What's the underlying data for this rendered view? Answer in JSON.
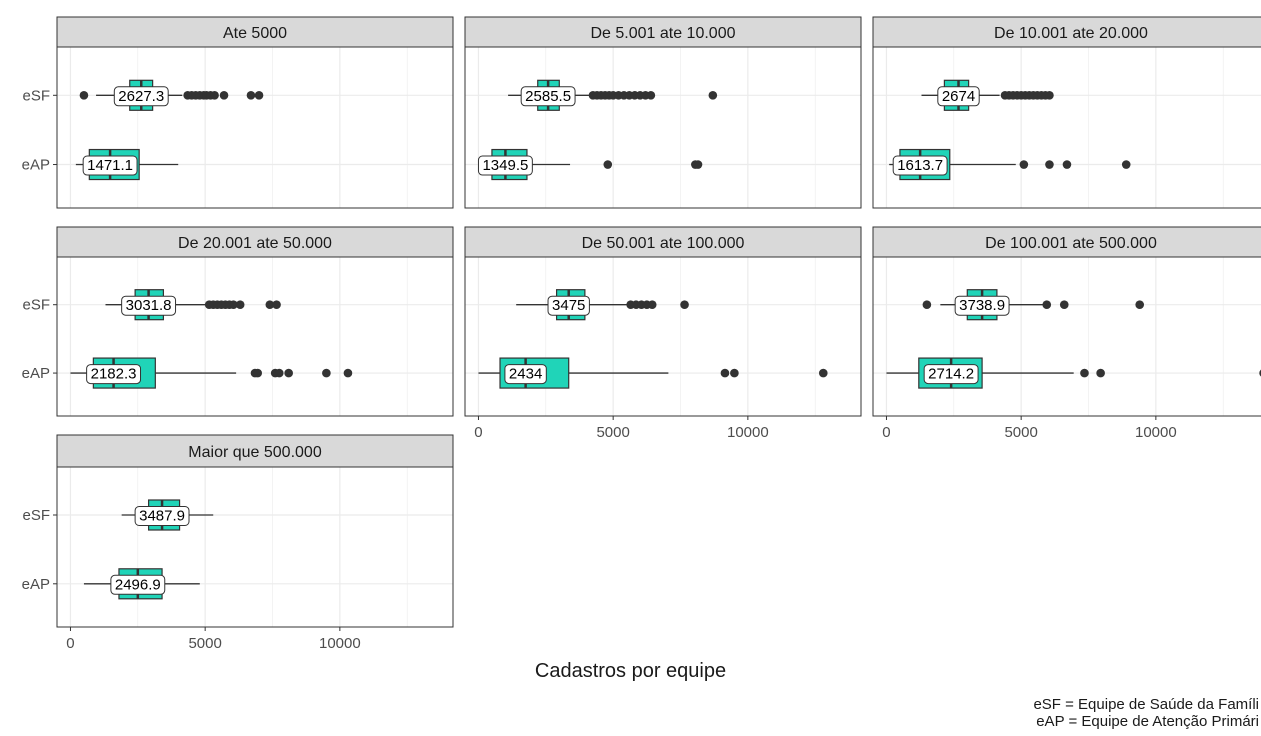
{
  "chart_data": {
    "type": "boxplot",
    "xlabel": "Cadastros por equipe",
    "categories": [
      "eSF",
      "eAP"
    ],
    "x_ticks": [
      0,
      5000,
      10000
    ],
    "xlim": [
      -500,
      14200
    ],
    "colors": {
      "box": "#20d4b8",
      "strip": "#d9d9d9",
      "grid": "#ebebeb"
    },
    "panels": [
      {
        "title": "Ate 5000",
        "groups": [
          {
            "category": "eSF",
            "q1": 2200,
            "median": 2627.3,
            "q3": 3050,
            "whisker_low": 950,
            "whisker_high": 4150,
            "outliers": [
              500,
              4350,
              4500,
              4650,
              4800,
              4950,
              5050,
              5200,
              5350,
              5700,
              6700,
              7000
            ],
            "label": "2627.3"
          },
          {
            "category": "eAP",
            "q1": 700,
            "median": 1471.1,
            "q3": 2550,
            "whisker_low": 200,
            "whisker_high": 4000,
            "outliers": [],
            "label": "1471.1"
          }
        ]
      },
      {
        "title": "De 5.001 ate 10.000",
        "groups": [
          {
            "category": "eSF",
            "q1": 2200,
            "median": 2585.5,
            "q3": 3000,
            "whisker_low": 1100,
            "whisker_high": 4150,
            "outliers": [
              4250,
              4400,
              4550,
              4700,
              4850,
              5000,
              5200,
              5400,
              5600,
              5800,
              6000,
              6200,
              6400,
              8700
            ],
            "label": "2585.5"
          },
          {
            "category": "eAP",
            "q1": 500,
            "median": 1000,
            "q3": 1800,
            "whisker_low": 100,
            "whisker_high": 3400,
            "outliers": [
              4800,
              8050,
              8150
            ],
            "label": "1349.5"
          }
        ]
      },
      {
        "title": "De 10.001 ate 20.000",
        "groups": [
          {
            "category": "eSF",
            "q1": 2150,
            "median": 2674,
            "q3": 3050,
            "whisker_low": 1300,
            "whisker_high": 4200,
            "outliers": [
              4400,
              4550,
              4700,
              4850,
              5000,
              5150,
              5300,
              5450,
              5600,
              5750,
              5900,
              6050
            ],
            "label": "2674"
          },
          {
            "category": "eAP",
            "q1": 500,
            "median": 1250,
            "q3": 2350,
            "whisker_low": 100,
            "whisker_high": 4800,
            "outliers": [
              5100,
              6050,
              6700,
              8900
            ],
            "label": "1613.7"
          }
        ]
      },
      {
        "title": "De 20.001 ate 50.000",
        "groups": [
          {
            "category": "eSF",
            "q1": 2400,
            "median": 2900,
            "q3": 3450,
            "whisker_low": 1300,
            "whisker_high": 5000,
            "outliers": [
              5150,
              5300,
              5450,
              5600,
              5750,
              5900,
              6050,
              6300,
              7400,
              7650
            ],
            "label": "3031.8"
          },
          {
            "category": "eAP",
            "q1": 850,
            "median": 1600,
            "q3": 3150,
            "whisker_low": 0,
            "whisker_high": 6150,
            "outliers": [
              6850,
              6950,
              7600,
              7750,
              8100,
              9500,
              10300
            ],
            "label": "2182.3"
          }
        ]
      },
      {
        "title": "De 50.001 ate 100.000",
        "groups": [
          {
            "category": "eSF",
            "q1": 2900,
            "median": 3350,
            "q3": 3950,
            "whisker_low": 1400,
            "whisker_high": 5500,
            "outliers": [
              5650,
              5850,
              6050,
              6250,
              6450,
              7650
            ],
            "label": "3475"
          },
          {
            "category": "eAP",
            "q1": 800,
            "median": 1750,
            "q3": 3350,
            "whisker_low": 0,
            "whisker_high": 7050,
            "outliers": [
              9150,
              9500,
              12800
            ],
            "label": "2434"
          }
        ]
      },
      {
        "title": "De 100.001 ate 500.000",
        "groups": [
          {
            "category": "eSF",
            "q1": 3000,
            "median": 3550,
            "q3": 4100,
            "whisker_low": 2000,
            "whisker_high": 5850,
            "outliers": [
              1500,
              5950,
              6600,
              9400
            ],
            "label": "3738.9"
          },
          {
            "category": "eAP",
            "q1": 1200,
            "median": 2400,
            "q3": 3550,
            "whisker_low": 0,
            "whisker_high": 6950,
            "outliers": [
              7350,
              7950,
              14000
            ],
            "label": "2714.2"
          }
        ]
      },
      {
        "title": "Maior que 500.000",
        "groups": [
          {
            "category": "eSF",
            "q1": 2900,
            "median": 3400,
            "q3": 4050,
            "whisker_low": 1900,
            "whisker_high": 5300,
            "outliers": [],
            "label": "3487.9"
          },
          {
            "category": "eAP",
            "q1": 1800,
            "median": 2500,
            "q3": 3400,
            "whisker_low": 500,
            "whisker_high": 4800,
            "outliers": [],
            "label": "2496.9"
          }
        ]
      }
    ],
    "footnote": [
      "eSF = Equipe de Saúde da Famíli",
      "eAP = Equipe de Atenção Primári"
    ]
  }
}
